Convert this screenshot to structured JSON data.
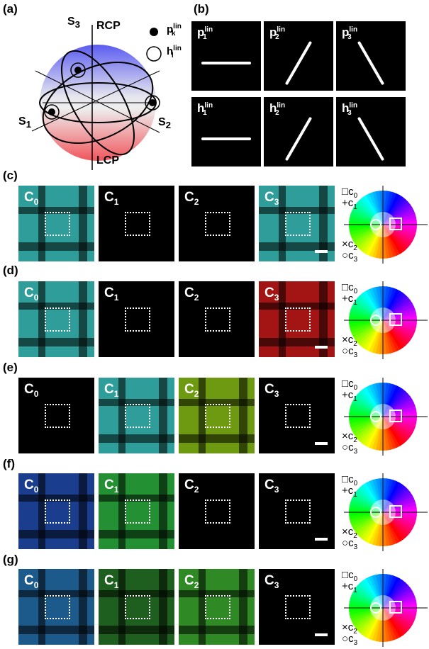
{
  "panel_labels": {
    "a": "(a)",
    "b": "(b)",
    "c": "(c)",
    "d": "(d)",
    "e": "(e)",
    "f": "(f)",
    "g": "(g)"
  },
  "sphere": {
    "s3": "S",
    "s3_sub": "3",
    "rcp": "RCP",
    "s1": "S",
    "s1_sub": "1",
    "s2": "S",
    "s2_sub": "2",
    "lcp": "LCP",
    "legend_p": "p",
    "legend_p_sup": "lin",
    "legend_p_sub": "k",
    "legend_h": "h",
    "legend_h_sup": "lin",
    "legend_h_sub": "l"
  },
  "pol_panels": [
    {
      "name": "p",
      "sup": "lin",
      "sub": "1",
      "angle": 0
    },
    {
      "name": "p",
      "sup": "lin",
      "sub": "2",
      "angle": -60
    },
    {
      "name": "p",
      "sup": "lin",
      "sub": "3",
      "angle": 60
    },
    {
      "name": "h",
      "sup": "lin",
      "sub": "1",
      "angle": 0
    },
    {
      "name": "h",
      "sup": "lin",
      "sub": "2",
      "angle": -60
    },
    {
      "name": "h",
      "sup": "lin",
      "sub": "3",
      "angle": 60
    }
  ],
  "rows": [
    {
      "key": "c",
      "colors": [
        "#2f9e9a",
        "#000000",
        "#000000",
        "#2f9e9a"
      ]
    },
    {
      "key": "d",
      "colors": [
        "#2f9e9a",
        "#000000",
        "#000000",
        "#a31414"
      ]
    },
    {
      "key": "e",
      "colors": [
        "#000000",
        "#2f9e9a",
        "#6d9a10",
        "#000000"
      ]
    },
    {
      "key": "f",
      "colors": [
        "#1a3d8e",
        "#239033",
        "#000000",
        "#000000"
      ]
    },
    {
      "key": "g",
      "colors": [
        "#1d5a8c",
        "#1e5e1e",
        "#2f8a25",
        "#000000"
      ]
    }
  ],
  "channel_labels": [
    "C",
    "C",
    "C",
    "C"
  ],
  "channel_subs": [
    "0",
    "1",
    "2",
    "3"
  ],
  "legend": {
    "c0": "c",
    "c0_sub": "0",
    "c1": "c",
    "c1_sub": "1",
    "c2": "c",
    "c2_sub": "2",
    "c3": "c",
    "c3_sub": "3"
  }
}
